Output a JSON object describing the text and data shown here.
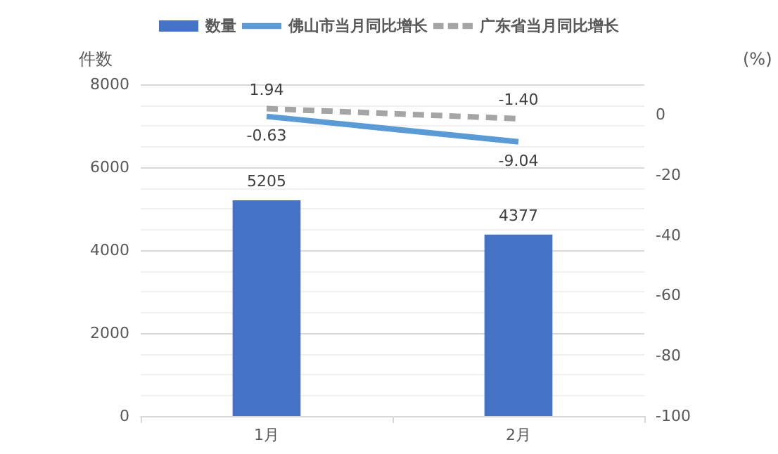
{
  "chart_data": {
    "type": "bar",
    "categories": [
      "1月",
      "2月"
    ],
    "ylabel": "件数",
    "y2label": "(%)",
    "ylim": [
      0,
      8000
    ],
    "yticks": [
      0,
      2000,
      4000,
      6000,
      8000
    ],
    "y2lim": [
      -100,
      10
    ],
    "y2ticks": [
      -100,
      -80,
      -60,
      -40,
      -20,
      0
    ],
    "grid": "y",
    "legend": "top",
    "series": [
      {
        "name": "数量",
        "color": "#4472c4",
        "values": [
          5205,
          4377
        ],
        "value_labels": [
          "5205",
          "4377"
        ]
      },
      {
        "name": "佛山市当月同比增长",
        "type": "line",
        "axis": "y2",
        "color": "#5b9bd5",
        "line_style": "solid",
        "values": [
          -0.63,
          -9.04
        ],
        "value_labels": [
          "-0.63",
          "-9.04"
        ]
      },
      {
        "name": "广东省当月同比增长",
        "type": "line",
        "axis": "y2",
        "color": "#a5a5a5",
        "line_style": "dashed",
        "values": [
          1.94,
          -1.4
        ],
        "value_labels": [
          "1.94",
          "-1.40"
        ]
      }
    ]
  }
}
